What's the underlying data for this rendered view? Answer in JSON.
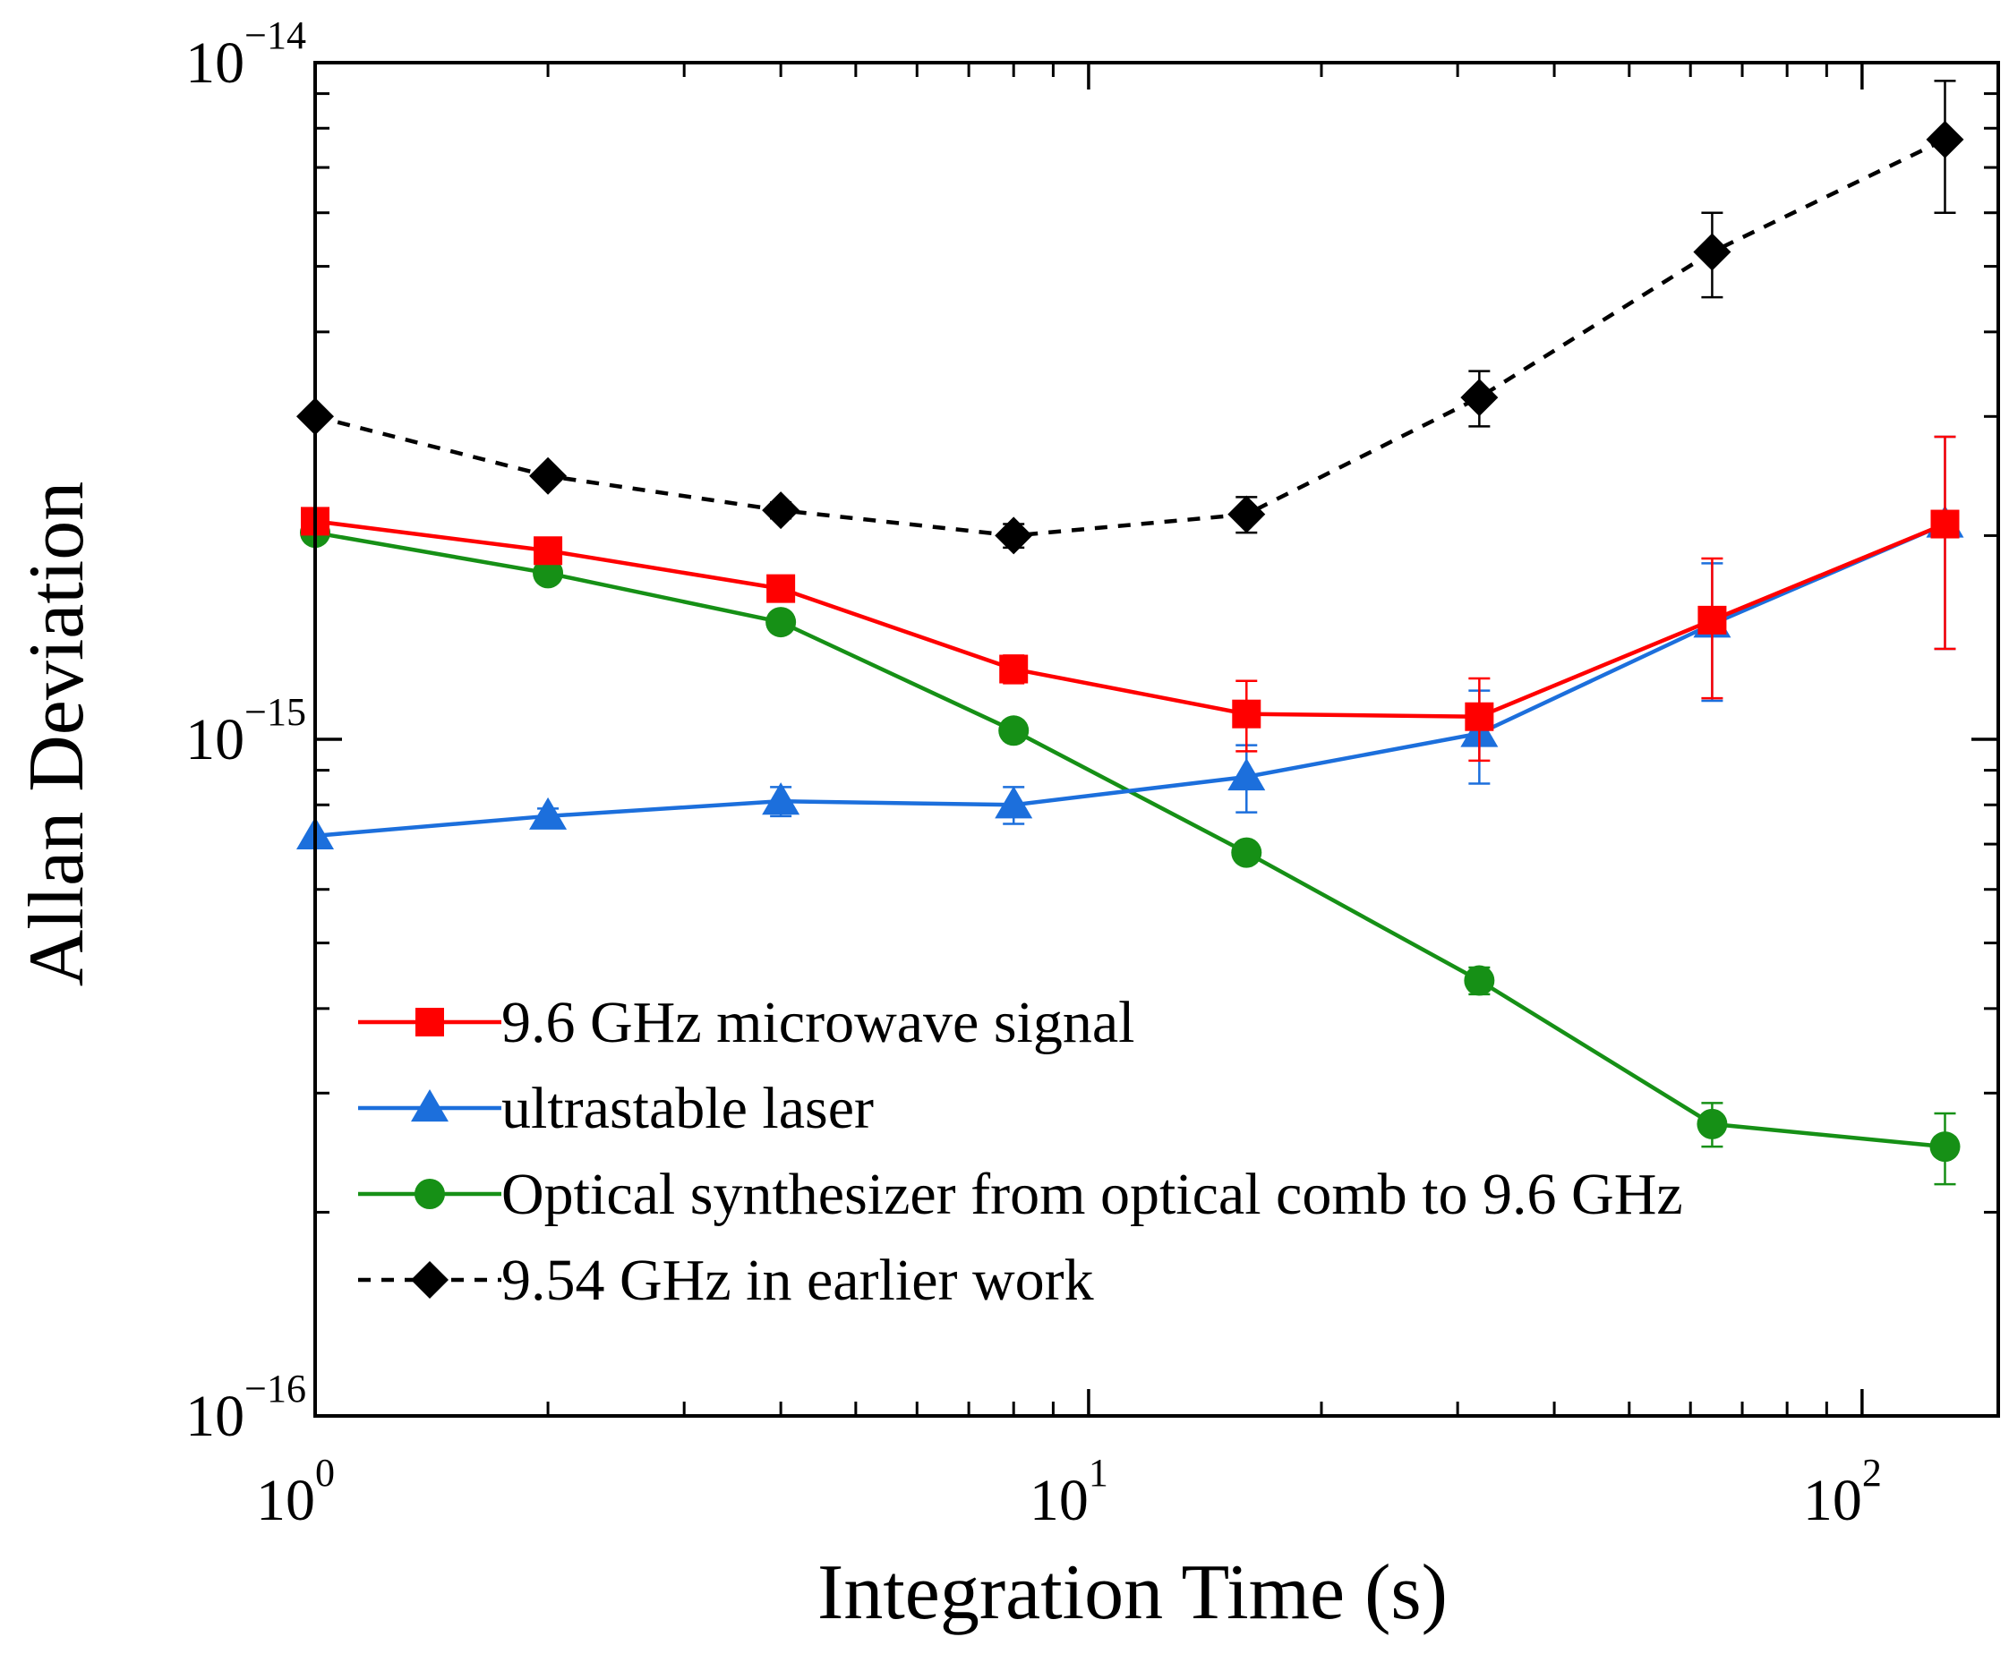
{
  "chart_data": {
    "type": "line",
    "title": "",
    "xlabel": "Integration Time (s)",
    "ylabel": "Allan Deviation",
    "xscale": "log",
    "yscale": "log",
    "xlim": [
      1,
      150
    ],
    "ylim": [
      1e-16,
      1e-14
    ],
    "x_ticks": [
      {
        "value": 1,
        "base": "10",
        "exp": "0"
      },
      {
        "value": 10,
        "base": "10",
        "exp": "1"
      },
      {
        "value": 100,
        "base": "10",
        "exp": "2"
      }
    ],
    "y_ticks": [
      {
        "value": 1e-16,
        "base": "10",
        "exp": "−16"
      },
      {
        "value": 1e-15,
        "base": "10",
        "exp": "−15"
      },
      {
        "value": 1e-14,
        "base": "10",
        "exp": "−14"
      }
    ],
    "legend_position": "lower-left",
    "series": [
      {
        "name": "9.6 GHz microwave signal",
        "color": "#ff0000",
        "marker": "square",
        "dash": "solid",
        "x": [
          1,
          2,
          4,
          8,
          16,
          32,
          64,
          128
        ],
        "y": [
          2.1e-15,
          1.9e-15,
          1.67e-15,
          1.27e-15,
          1.09e-15,
          1.08e-15,
          1.5e-15,
          2.08e-15
        ],
        "err": [
          0,
          3e-17,
          5e-17,
          6e-17,
          1.3e-16,
          1.5e-16,
          3.5e-16,
          7.2e-16
        ]
      },
      {
        "name": "ultrastable laser",
        "color": "#1c6fdc",
        "marker": "triangle",
        "dash": "solid",
        "x": [
          1,
          2,
          4,
          8,
          16,
          32,
          64,
          128
        ],
        "y": [
          7.2e-16,
          7.7e-16,
          8.1e-16,
          8e-16,
          8.8e-16,
          1.02e-15,
          1.48e-15,
          2.08e-15
        ],
        "err": [
          0,
          2e-17,
          4e-17,
          5e-17,
          1e-16,
          1.6e-16,
          3.4e-16,
          7.2e-16
        ]
      },
      {
        "name": "Optical synthesizer from optical comb to 9.6 GHz",
        "color": "#169016",
        "marker": "circle",
        "dash": "solid",
        "x": [
          1,
          2,
          4,
          8,
          16,
          32,
          64,
          128
        ],
        "y": [
          2.02e-15,
          1.76e-15,
          1.49e-15,
          1.03e-15,
          6.8e-16,
          4.4e-16,
          2.7e-16,
          2.5e-16
        ],
        "err": [
          0,
          3e-17,
          3e-17,
          3e-17,
          2e-17,
          2e-17,
          2e-17,
          3e-17
        ]
      },
      {
        "name": "9.54 GHz in earlier work",
        "color": "#000000",
        "marker": "diamond",
        "dash": "dashed",
        "x": [
          1,
          2,
          4,
          8,
          16,
          32,
          64,
          128
        ],
        "y": [
          3e-15,
          2.45e-15,
          2.18e-15,
          2e-15,
          2.15e-15,
          3.2e-15,
          5.25e-15,
          7.7e-15
        ],
        "err": [
          0,
          4e-17,
          6e-17,
          8e-17,
          1.3e-16,
          3e-16,
          7.5e-16,
          1.7e-15
        ]
      }
    ]
  }
}
